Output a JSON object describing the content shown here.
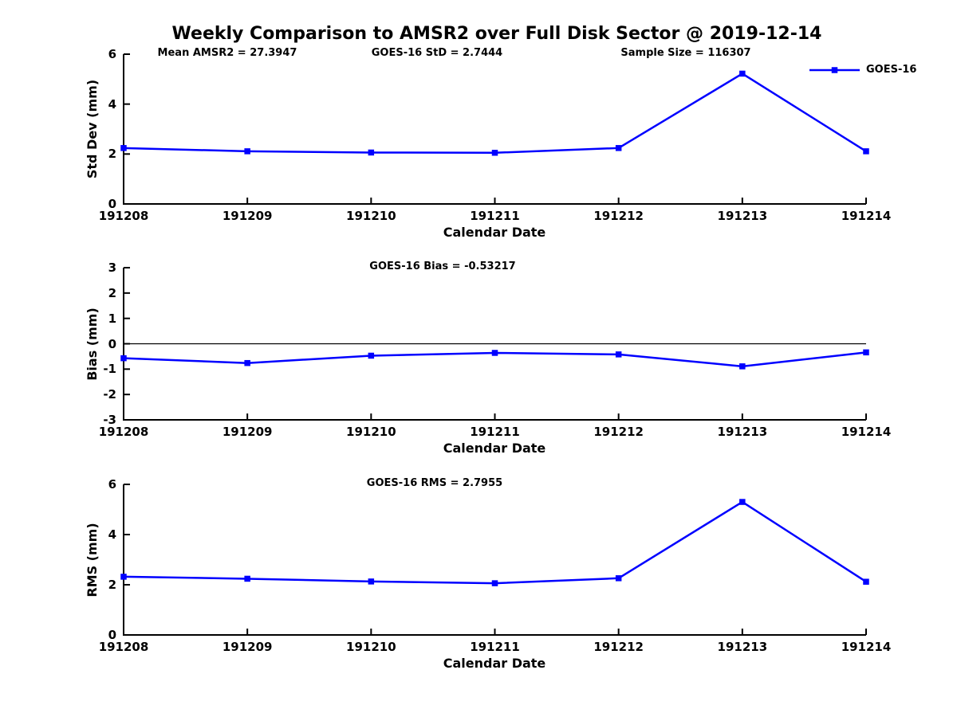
{
  "title": "Weekly Comparison to AMSR2 over Full Disk Sector @ 2019-12-14",
  "colors": {
    "line": "#0000FF",
    "axis": "#000000",
    "text": "#000000",
    "background": "#FFFFFF"
  },
  "chart_data": [
    {
      "type": "line",
      "name": "std-dev",
      "ylabel": "Std Dev (mm)",
      "xlabel": "Calendar Date",
      "ylim": [
        0,
        6
      ],
      "yticks": [
        0,
        2,
        4,
        6
      ],
      "categories": [
        "191208",
        "191209",
        "191210",
        "191211",
        "191212",
        "191213",
        "191214"
      ],
      "series": [
        {
          "name": "GOES-16",
          "values": [
            2.24,
            2.11,
            2.06,
            2.05,
            2.24,
            5.22,
            2.11
          ]
        }
      ],
      "annotations": [
        {
          "text": "Mean AMSR2 = 27.3947",
          "cx": 285
        },
        {
          "text": "GOES-16 StD = 2.7444",
          "cx": 548
        },
        {
          "text": "Sample Size = 116307",
          "cx": 860
        }
      ],
      "legend": {
        "label": "GOES-16",
        "position": "top-right"
      },
      "zero_line": false,
      "grid": false
    },
    {
      "type": "line",
      "name": "bias",
      "ylabel": "Bias (mm)",
      "xlabel": "Calendar Date",
      "ylim": [
        -3,
        3
      ],
      "yticks": [
        3,
        2,
        1,
        0,
        -1,
        -2,
        -3
      ],
      "categories": [
        "191208",
        "191209",
        "191210",
        "191211",
        "191212",
        "191213",
        "191214"
      ],
      "series": [
        {
          "name": "GOES-16",
          "values": [
            -0.57,
            -0.76,
            -0.47,
            -0.36,
            -0.42,
            -0.89,
            -0.34
          ]
        }
      ],
      "annotations": [
        {
          "text": "GOES-16 Bias  = -0.53217",
          "cx": 555
        }
      ],
      "zero_line": true,
      "grid": false
    },
    {
      "type": "line",
      "name": "rms",
      "ylabel": "RMS (mm)",
      "xlabel": "Calendar Date",
      "ylim": [
        0,
        6
      ],
      "yticks": [
        0,
        2,
        4,
        6
      ],
      "categories": [
        "191208",
        "191209",
        "191210",
        "191211",
        "191212",
        "191213",
        "191214"
      ],
      "series": [
        {
          "name": "GOES-16",
          "values": [
            2.32,
            2.24,
            2.13,
            2.06,
            2.26,
            5.3,
            2.12
          ]
        }
      ],
      "annotations": [
        {
          "text": "GOES-16 RMS = 2.7955",
          "cx": 545
        }
      ],
      "zero_line": false,
      "grid": false
    }
  ]
}
